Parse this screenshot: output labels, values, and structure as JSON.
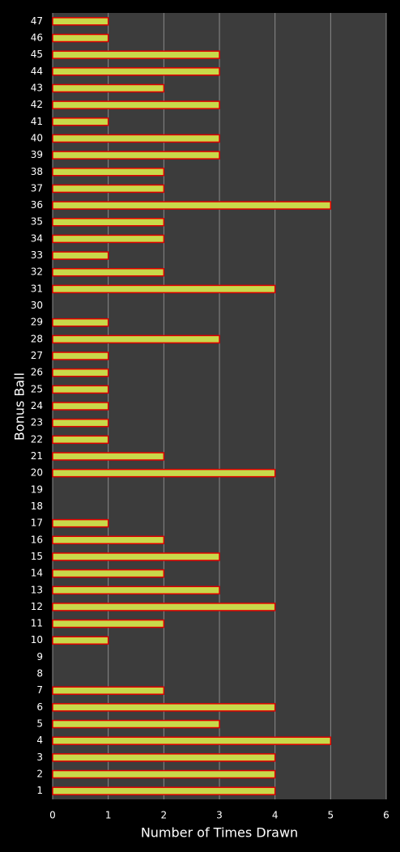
{
  "chart_data": {
    "type": "barh",
    "xlabel": "Number of Times Drawn",
    "ylabel": "Bonus Ball",
    "categories": [
      "1",
      "2",
      "3",
      "4",
      "5",
      "6",
      "7",
      "8",
      "9",
      "10",
      "11",
      "12",
      "13",
      "14",
      "15",
      "16",
      "17",
      "18",
      "19",
      "20",
      "21",
      "22",
      "23",
      "24",
      "25",
      "26",
      "27",
      "28",
      "29",
      "30",
      "31",
      "32",
      "33",
      "34",
      "35",
      "36",
      "37",
      "38",
      "39",
      "40",
      "41",
      "42",
      "43",
      "44",
      "45",
      "46",
      "47"
    ],
    "values": [
      4,
      4,
      4,
      5,
      3,
      4,
      2,
      0,
      0,
      1,
      2,
      4,
      3,
      2,
      3,
      2,
      1,
      0,
      0,
      4,
      2,
      1,
      1,
      1,
      1,
      1,
      1,
      3,
      1,
      0,
      4,
      2,
      1,
      2,
      2,
      5,
      2,
      2,
      3,
      3,
      1,
      3,
      2,
      3,
      3,
      1,
      1
    ],
    "color": "#c9d94a",
    "edge_color": "#e00000",
    "xlim": [
      0,
      6
    ],
    "xticks": [
      0,
      1,
      2,
      3,
      4,
      5,
      6
    ],
    "grid": true
  }
}
